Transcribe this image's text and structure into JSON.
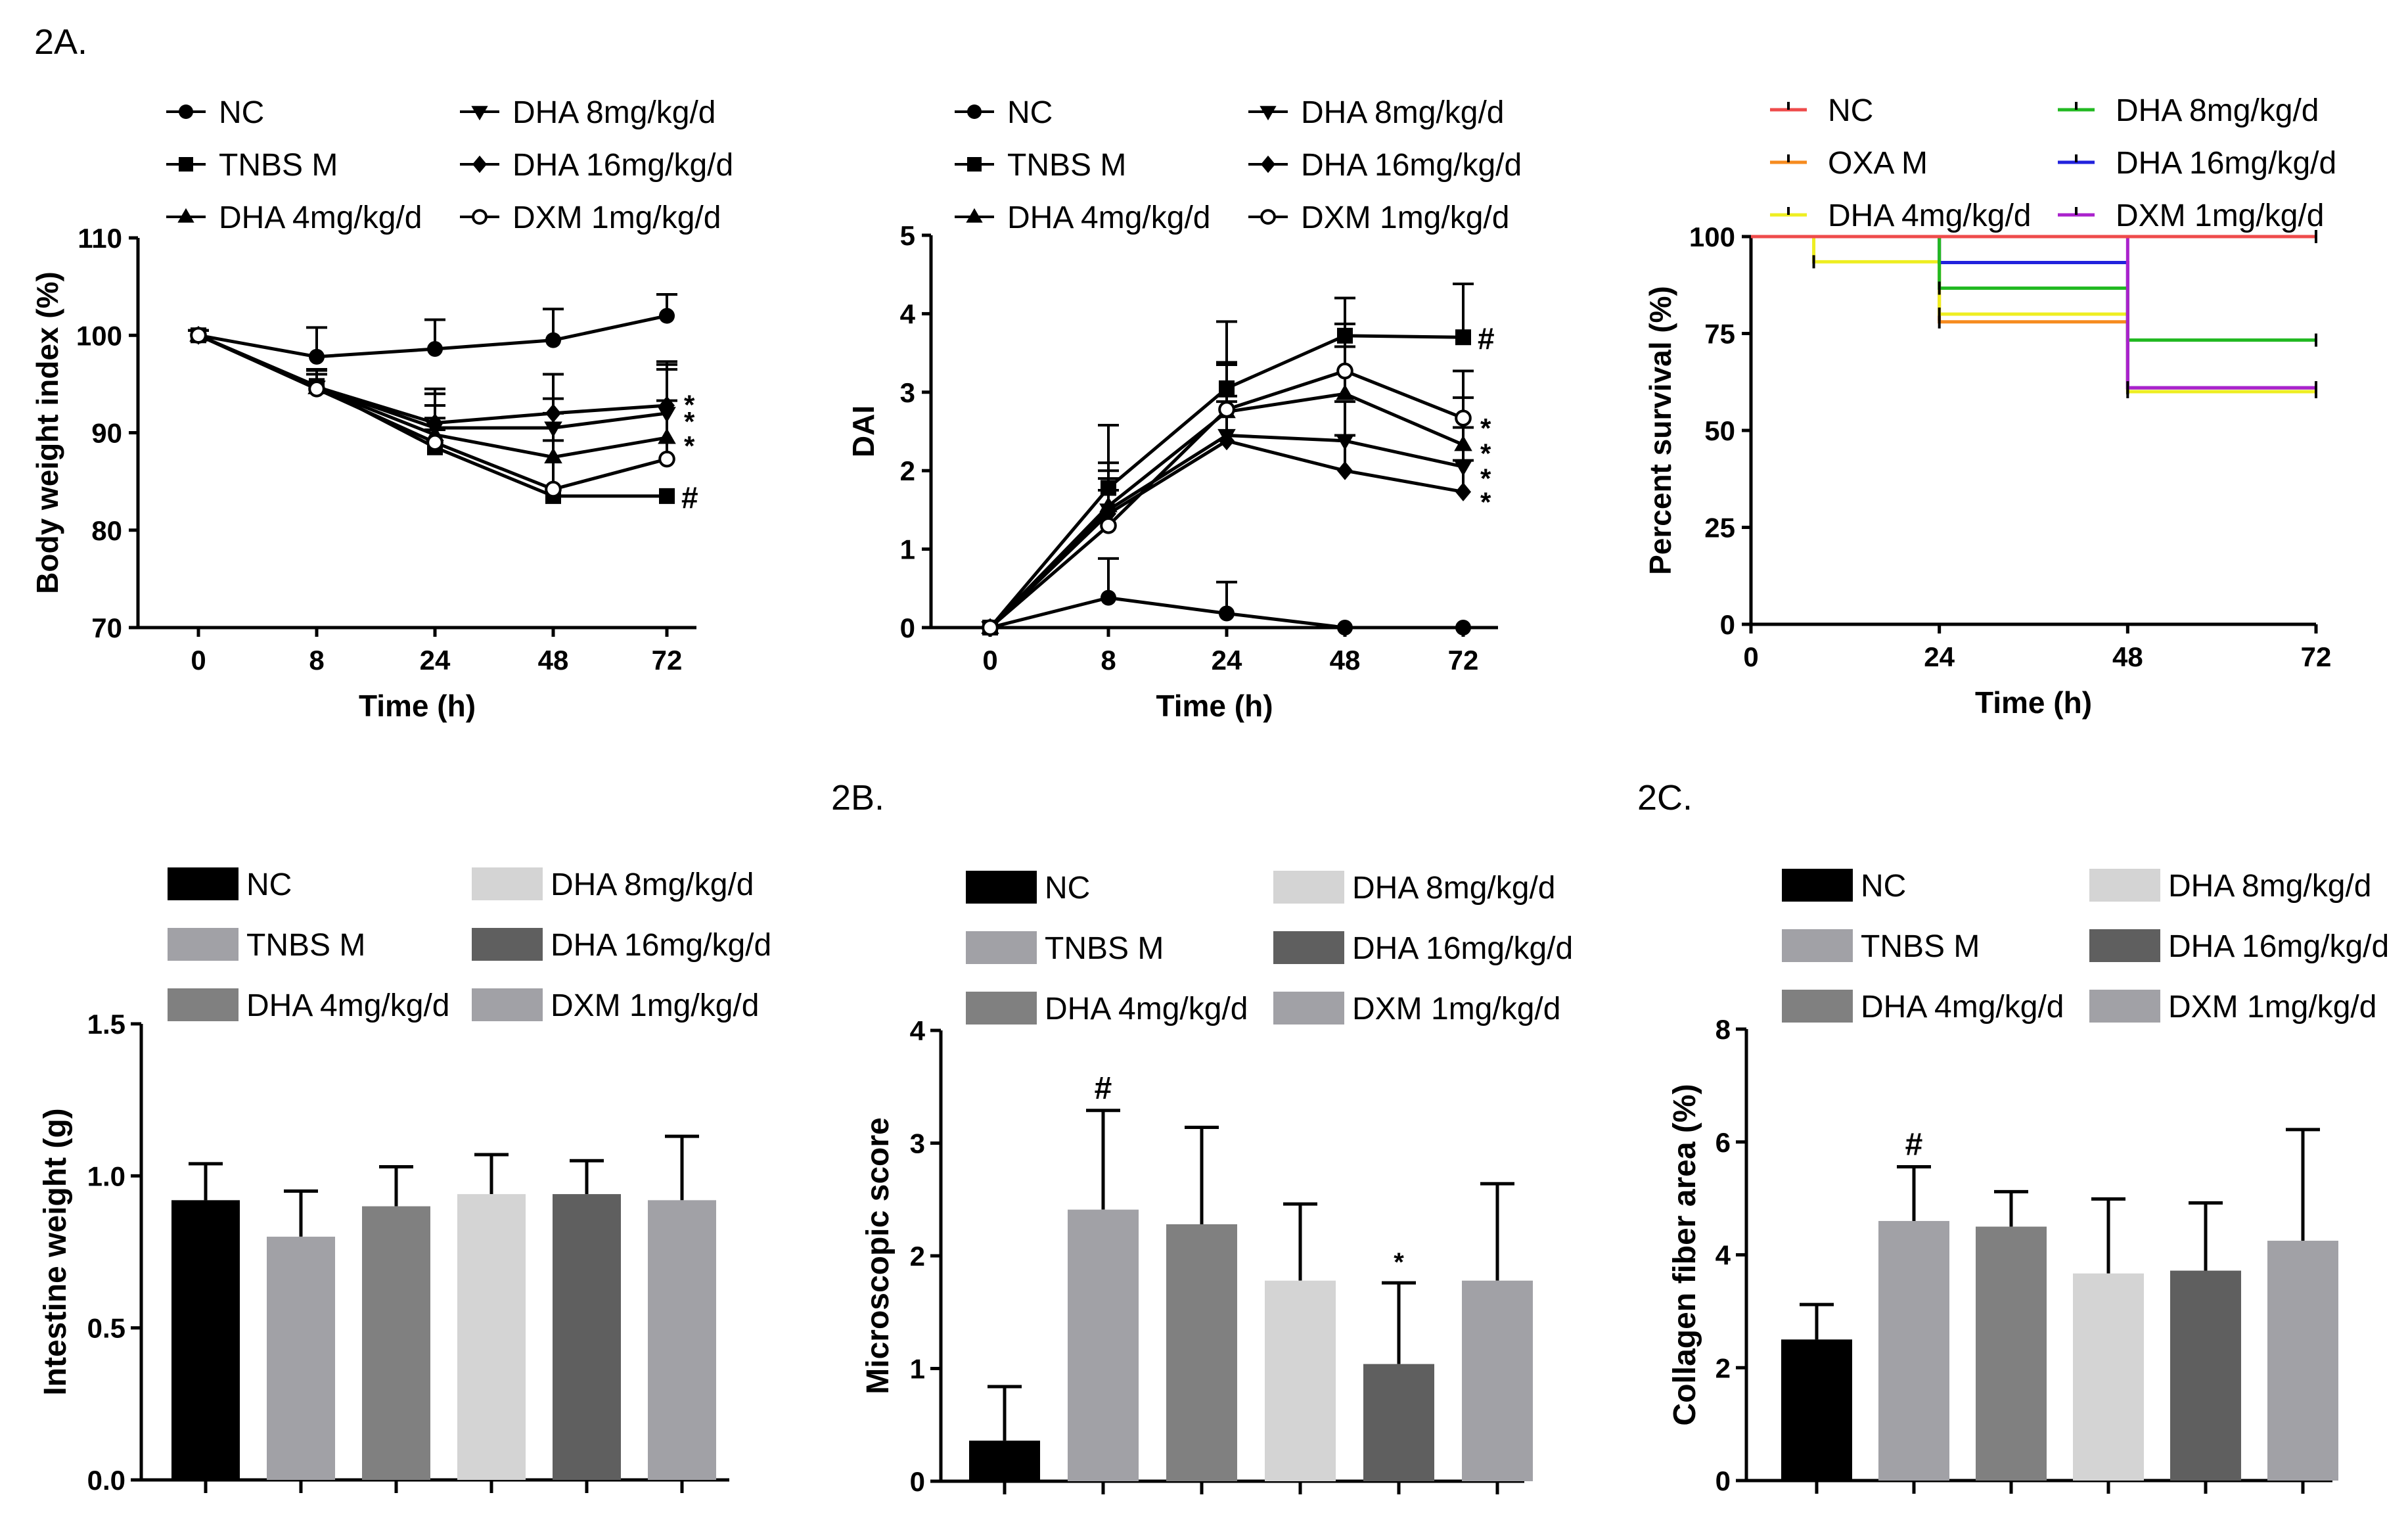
{
  "panel_labels": [
    "2A.",
    "2B.",
    "2C."
  ],
  "chart_data": [
    {
      "id": "bw",
      "type": "line",
      "ylabel": "Body weight index (%)",
      "xlabel": "Time (h)",
      "x_ticks": [
        "0",
        "8",
        "24",
        "48",
        "72"
      ],
      "ylim": [
        70,
        110
      ],
      "y_ticks": [
        70,
        80,
        90,
        100,
        110
      ],
      "series": [
        {
          "name": "NC",
          "marker": "circle",
          "values": [
            100,
            97.8,
            98.6,
            99.5,
            102.0
          ],
          "errors": [
            0.5,
            3.0,
            3.0,
            3.2,
            2.2
          ]
        },
        {
          "name": "TNBS M",
          "marker": "square",
          "values": [
            100,
            94.8,
            88.5,
            83.5,
            83.5
          ],
          "errors": [
            0.5,
            1.6,
            1.8,
            0,
            0
          ]
        },
        {
          "name": "DHA 4mg/kg/d",
          "marker": "triangle-up",
          "values": [
            100,
            94.6,
            89.8,
            87.5,
            89.5
          ],
          "errors": [
            0.5,
            1.8,
            3.0,
            4.5,
            7.0
          ]
        },
        {
          "name": "DHA 8mg/kg/d",
          "marker": "triangle-down",
          "values": [
            100,
            94.7,
            90.5,
            90.5,
            92.0
          ],
          "errors": [
            0.5,
            1.8,
            3.5,
            3.0,
            5.0
          ]
        },
        {
          "name": "DHA 16mg/kg/d",
          "marker": "diamond",
          "values": [
            100,
            94.7,
            91.0,
            92.0,
            92.8
          ],
          "errors": [
            0.5,
            1.8,
            3.5,
            4.0,
            4.5
          ]
        },
        {
          "name": "DXM 1mg/kg/d",
          "marker": "circle-open",
          "values": [
            100,
            94.5,
            89.0,
            84.2,
            87.3
          ],
          "errors": [
            0.5,
            1.5,
            2.5,
            5.0,
            6.0
          ]
        }
      ],
      "annotations": [
        {
          "text": "*",
          "x_index": 4,
          "y": 93.5
        },
        {
          "text": "*",
          "x_index": 4,
          "y": 91.8
        },
        {
          "text": "*",
          "x_index": 4,
          "y": 89.3
        },
        {
          "text": "#",
          "x_index": 4,
          "y": 83.5
        }
      ]
    },
    {
      "id": "dai",
      "type": "line",
      "ylabel": "DAI",
      "xlabel": "Time (h)",
      "x_ticks": [
        "0",
        "8",
        "24",
        "48",
        "72"
      ],
      "ylim": [
        0,
        5
      ],
      "y_ticks": [
        0,
        1,
        2,
        3,
        4,
        5
      ],
      "series": [
        {
          "name": "NC",
          "marker": "circle",
          "values": [
            0,
            0.38,
            0.18,
            0.0,
            0.0
          ],
          "errors": [
            0,
            0.5,
            0.4,
            0,
            0
          ]
        },
        {
          "name": "TNBS M",
          "marker": "square",
          "values": [
            0,
            1.78,
            3.05,
            3.72,
            3.7
          ],
          "errors": [
            0,
            0.8,
            0.85,
            0.48,
            0.68
          ]
        },
        {
          "name": "DHA 4mg/kg/d",
          "marker": "triangle-up",
          "values": [
            0,
            1.55,
            2.75,
            2.98,
            2.33
          ],
          "errors": [
            0,
            0.55,
            0.6,
            0.6,
            0.6
          ]
        },
        {
          "name": "DHA 8mg/kg/d",
          "marker": "triangle-down",
          "values": [
            0,
            1.5,
            2.45,
            2.38,
            2.05
          ],
          "errors": [
            0,
            0.5,
            0.5,
            0.5,
            0.5
          ]
        },
        {
          "name": "DHA 16mg/kg/d",
          "marker": "diamond",
          "values": [
            0,
            1.45,
            2.38,
            2.0,
            1.73
          ],
          "errors": [
            0,
            0.45,
            0.5,
            0.45,
            0.4
          ]
        },
        {
          "name": "DXM 1mg/kg/d",
          "marker": "circle-open",
          "values": [
            0,
            1.3,
            2.78,
            3.27,
            2.67
          ],
          "errors": [
            0,
            0.45,
            0.6,
            0.6,
            0.6
          ]
        }
      ],
      "annotations": [
        {
          "text": "#",
          "x_index": 4,
          "y": 3.7
        },
        {
          "text": "*",
          "x_index": 4,
          "y": 2.62
        },
        {
          "text": "*",
          "x_index": 4,
          "y": 2.3
        },
        {
          "text": "*",
          "x_index": 4,
          "y": 1.98
        },
        {
          "text": "*",
          "x_index": 4,
          "y": 1.68
        }
      ]
    },
    {
      "id": "surv",
      "type": "line",
      "step": true,
      "ylabel": "Percent survival (%)",
      "xlabel": "Time (h)",
      "x_ticks": [
        "0",
        "24",
        "48",
        "72"
      ],
      "xlim": [
        0,
        72
      ],
      "ylim": [
        0,
        100
      ],
      "y_ticks": [
        0,
        25,
        50,
        75,
        100
      ],
      "series": [
        {
          "name": "NC",
          "color": "#ee4b4b",
          "x": [
            0,
            72
          ],
          "y": [
            100,
            100
          ]
        },
        {
          "name": "OXA M",
          "color": "#f68b1f",
          "x": [
            0,
            24,
            48,
            72
          ],
          "y": [
            100,
            78,
            61,
            61
          ]
        },
        {
          "name": "DHA 4mg/kg/d",
          "color": "#eeee22",
          "x": [
            0,
            8,
            24,
            48,
            72
          ],
          "y": [
            100,
            93.5,
            80,
            60,
            60
          ]
        },
        {
          "name": "DHA 8mg/kg/d",
          "color": "#22b922",
          "x": [
            0,
            24,
            48,
            72
          ],
          "y": [
            100,
            86.7,
            73.3,
            73.3
          ]
        },
        {
          "name": "DHA 16mg/kg/d",
          "color": "#2222dd",
          "x": [
            0,
            24,
            48,
            72
          ],
          "y": [
            100,
            93.3,
            61,
            61
          ]
        },
        {
          "name": "DXM 1mg/kg/d",
          "color": "#aa22cc",
          "x": [
            0,
            48,
            72
          ],
          "y": [
            100,
            61,
            61
          ]
        }
      ]
    },
    {
      "id": "iw",
      "type": "bar",
      "ylabel": "Intestine weight (g)",
      "categories": [
        "NC",
        "TNBS M",
        "DHA 4mg/kg/d",
        "DHA 8mg/kg/d",
        "DHA 16mg/kg/d",
        "DXM 1mg/kg/d"
      ],
      "colors": [
        "#000000",
        "#a1a1a6",
        "#808080",
        "#d4d4d4",
        "#5f5f5f",
        "#a1a1a6"
      ],
      "values": [
        0.92,
        0.8,
        0.9,
        0.94,
        0.94,
        0.92
      ],
      "errors": [
        0.12,
        0.15,
        0.13,
        0.13,
        0.11,
        0.21
      ],
      "ylim": [
        0,
        1.5
      ],
      "y_tick_labels": [
        "0.0",
        "0.5",
        "1.0",
        "1.5"
      ],
      "annotations": []
    },
    {
      "id": "ms",
      "type": "bar",
      "ylabel": "Microscopic score",
      "categories": [
        "NC",
        "TNBS M",
        "DHA 4mg/kg/d",
        "DHA 8mg/kg/d",
        "DHA 16mg/kg/d",
        "DXM 1mg/kg/d"
      ],
      "colors": [
        "#000000",
        "#a1a1a6",
        "#808080",
        "#d4d4d4",
        "#5f5f5f",
        "#a1a1a6"
      ],
      "values": [
        0.36,
        2.41,
        2.28,
        1.78,
        1.04,
        1.78
      ],
      "errors": [
        0.48,
        0.88,
        0.86,
        0.68,
        0.72,
        0.86
      ],
      "ylim": [
        0,
        4
      ],
      "y_tick_labels": [
        "0",
        "1",
        "2",
        "3",
        "4"
      ],
      "annotations": [
        {
          "text": "#",
          "index": 1
        },
        {
          "text": "*",
          "index": 4
        }
      ]
    },
    {
      "id": "cf",
      "type": "bar",
      "ylabel": "Collagen fiber area (%)",
      "categories": [
        "NC",
        "TNBS M",
        "DHA 4mg/kg/d",
        "DHA 8mg/kg/d",
        "DHA 16mg/kg/d",
        "DXM 1mg/kg/d"
      ],
      "colors": [
        "#000000",
        "#a1a1a6",
        "#808080",
        "#d4d4d4",
        "#5f5f5f",
        "#a1a1a6"
      ],
      "values": [
        2.5,
        4.6,
        4.5,
        3.67,
        3.72,
        4.25
      ],
      "errors": [
        0.62,
        0.96,
        0.62,
        1.32,
        1.2,
        1.97
      ],
      "ylim": [
        0,
        8
      ],
      "y_tick_labels": [
        "0",
        "2",
        "4",
        "6",
        "8"
      ],
      "annotations": [
        {
          "text": "#",
          "index": 1
        }
      ]
    }
  ]
}
